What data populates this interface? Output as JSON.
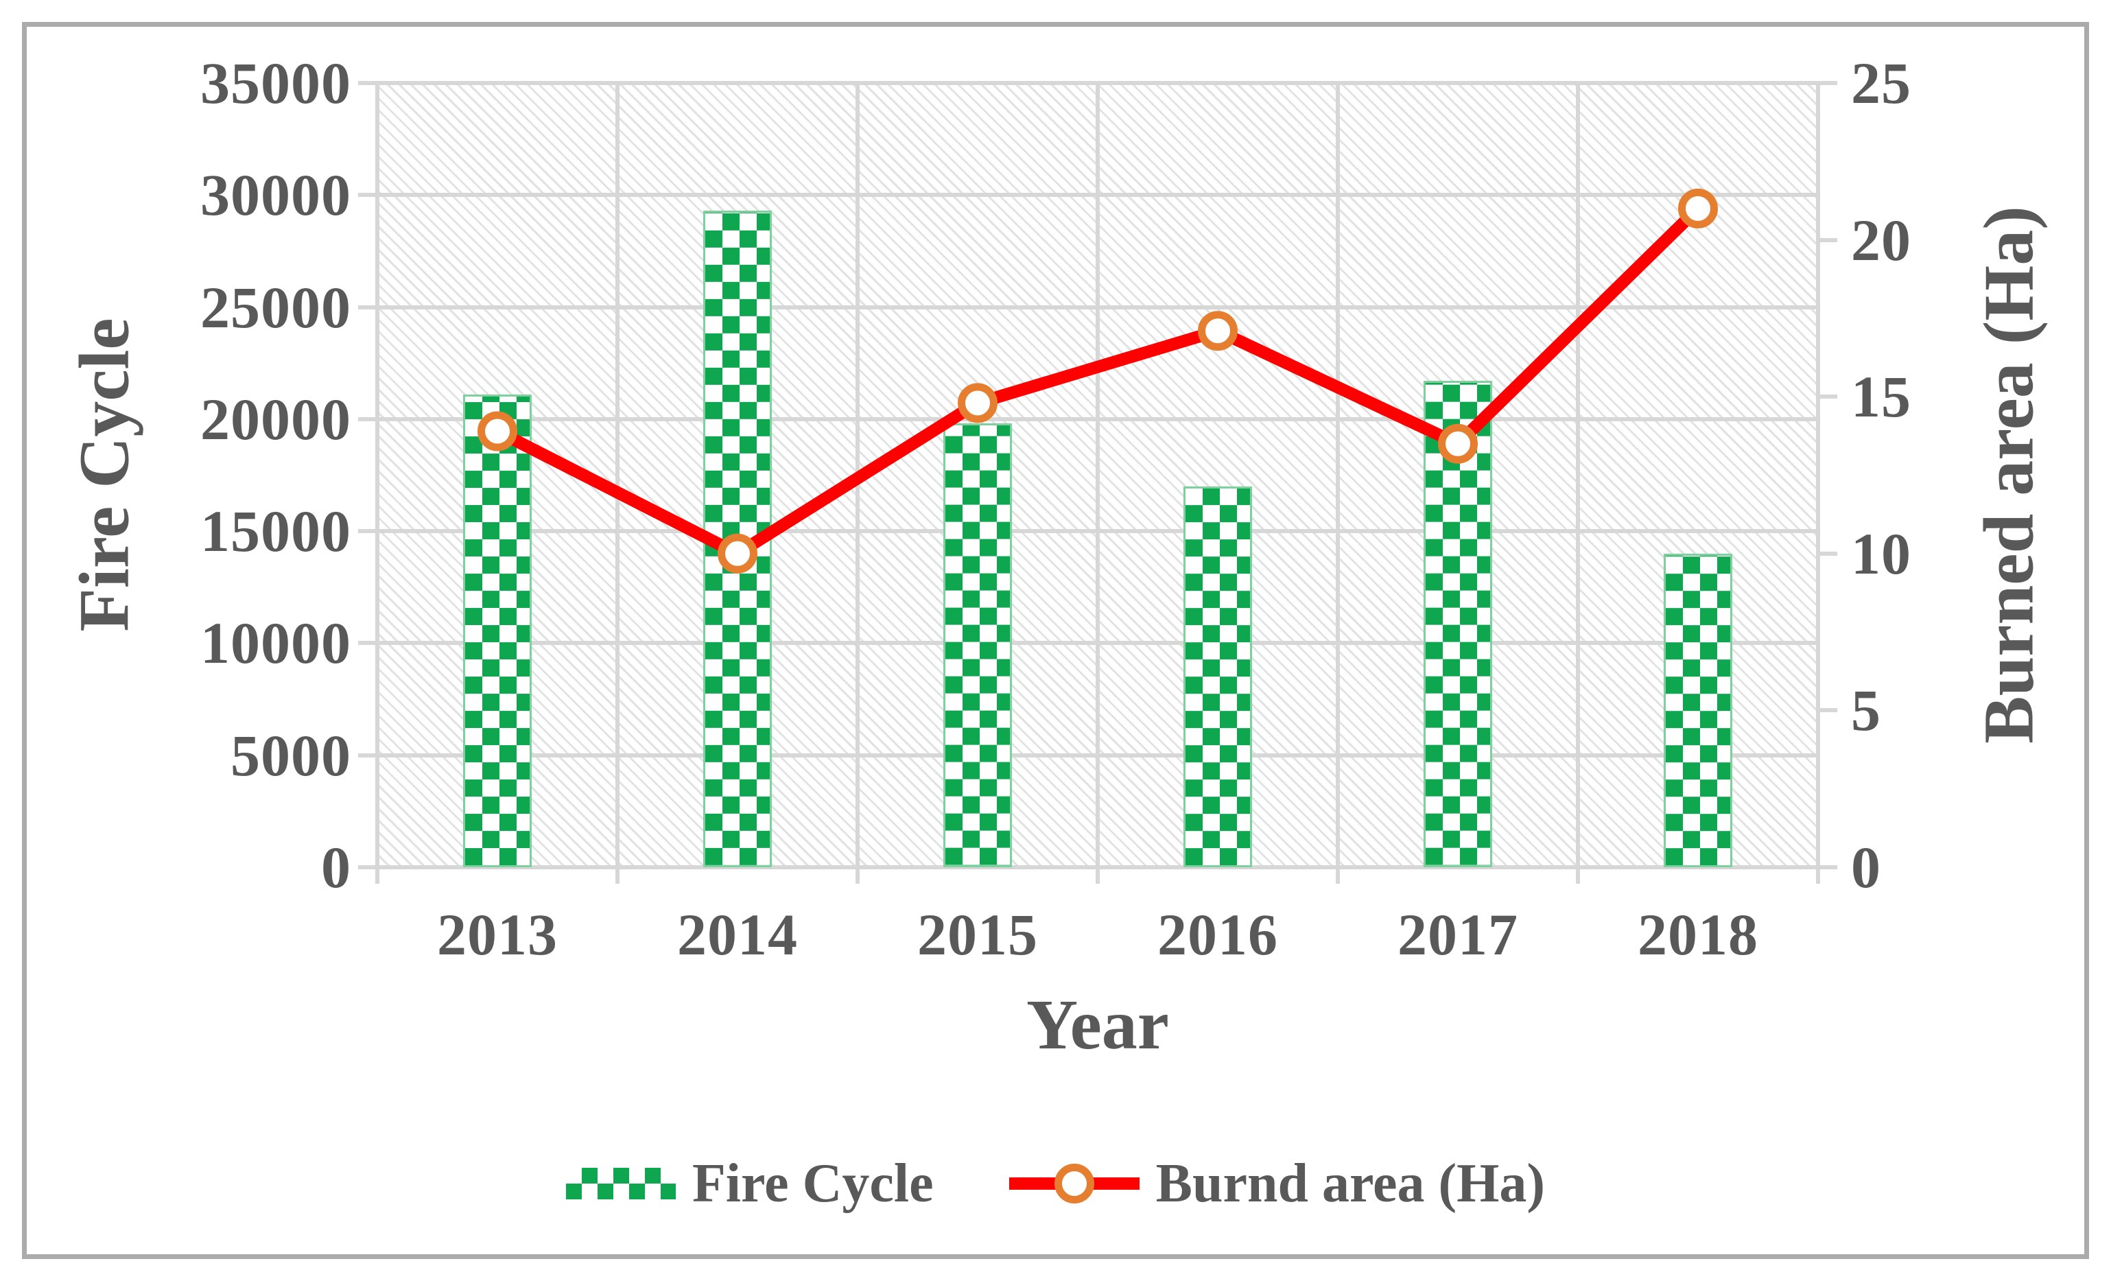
{
  "figure": {
    "background": "#FFFFFF",
    "frame_color": "#ABABAB"
  },
  "chart_data": {
    "type": "combo-bar-line",
    "categories": [
      "2013",
      "2014",
      "2015",
      "2016",
      "2017",
      "2018"
    ],
    "series": [
      {
        "name": "Fire Cycle",
        "type": "bar",
        "axis": "left",
        "values": [
          21100,
          29300,
          19800,
          17000,
          21700,
          14000
        ],
        "color": "#0EA64E",
        "pattern": "checkerboard"
      },
      {
        "name": "Burnd area (Ha)",
        "type": "line",
        "axis": "right",
        "values": [
          13.9,
          10,
          14.8,
          17.1,
          13.5,
          21
        ],
        "line_color": "#FF0000",
        "marker": "circle",
        "marker_color": "#E57E2F",
        "marker_fill": "#FFFFFF"
      }
    ],
    "left_axis": {
      "title": "Fire Cycle",
      "min": 0,
      "max": 35000,
      "ticks": [
        0,
        5000,
        10000,
        15000,
        20000,
        25000,
        30000,
        35000
      ],
      "tick_labels": [
        "0",
        "5000",
        "10000",
        "15000",
        "20000",
        "25000",
        "30000",
        "35000"
      ]
    },
    "right_axis": {
      "title": "Burned area (Ha)",
      "min": 0,
      "max": 25,
      "ticks": [
        0,
        5,
        10,
        15,
        20,
        25
      ],
      "tick_labels": [
        "0",
        "5",
        "10",
        "15",
        "20",
        "25"
      ]
    },
    "x_axis": {
      "title": "Year"
    },
    "legend": {
      "position": "bottom",
      "items": [
        {
          "label": "Fire Cycle",
          "swatch": "checker-bar"
        },
        {
          "label": "Burnd area (Ha)",
          "swatch": "line-with-circle-marker"
        }
      ]
    },
    "grid": true,
    "plot_background_pattern": "light-diagonal-hatch",
    "colors": {
      "grid": "#D7D7D7",
      "text": "#595959",
      "bar_green": "#0EA64E",
      "line_red": "#FF0000",
      "marker_orange": "#E57E2F"
    }
  }
}
